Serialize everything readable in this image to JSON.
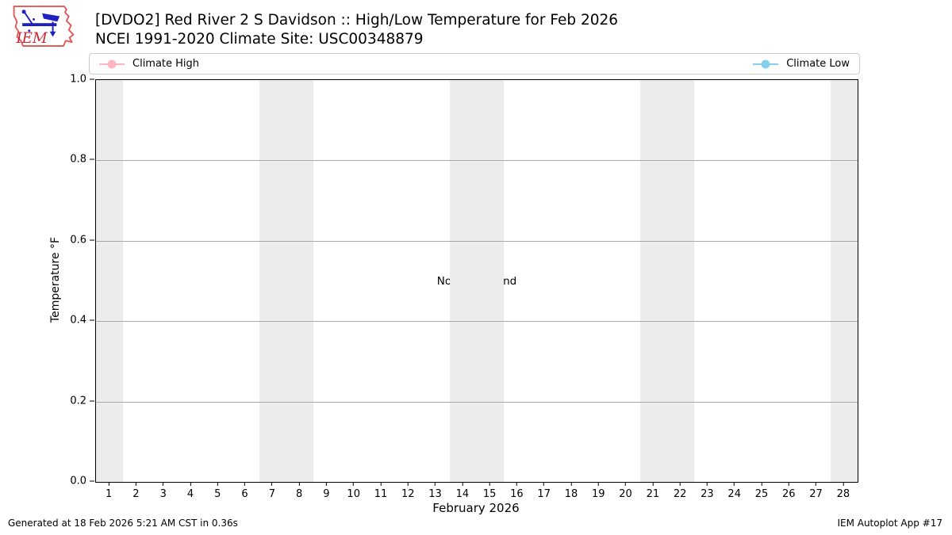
{
  "header": {
    "title": "[DVDO2] Red River 2 S Davidson :: High/Low Temperature for Feb 2026",
    "subtitle": "NCEI 1991-2020 Climate Site: USC00348879",
    "logo_text": "IEM"
  },
  "legend": {
    "items": [
      {
        "label": "Climate High",
        "color": "#ffb6c1"
      },
      {
        "label": "Climate Low",
        "color": "#87ceeb"
      }
    ]
  },
  "chart_data": {
    "type": "line",
    "title": "[DVDO2] Red River 2 S Davidson :: High/Low Temperature for Feb 2026",
    "subtitle": "NCEI 1991-2020 Climate Site: USC00348879",
    "xlabel": "February 2026",
    "ylabel": "Temperature °F",
    "xlim": [
      0.5,
      28.5
    ],
    "ylim": [
      0.0,
      1.0
    ],
    "x_ticks": [
      1,
      2,
      3,
      4,
      5,
      6,
      7,
      8,
      9,
      10,
      11,
      12,
      13,
      14,
      15,
      16,
      17,
      18,
      19,
      20,
      21,
      22,
      23,
      24,
      25,
      26,
      27,
      28
    ],
    "y_ticks": [
      "0.0",
      "0.2",
      "0.4",
      "0.6",
      "0.8",
      "1.0"
    ],
    "grid": "horizontal gridlines only",
    "legend_position": "top bar, high at left / low at right",
    "series": [
      {
        "name": "Climate High",
        "color": "#ffb6c1",
        "x": [],
        "values": []
      },
      {
        "name": "Climate Low",
        "color": "#87ceeb",
        "x": [],
        "values": []
      }
    ],
    "no_data_message": "No Data Found",
    "weekend_shading_bands_x": [
      [
        0.5,
        1.5
      ],
      [
        6.5,
        8.5
      ],
      [
        13.5,
        15.5
      ],
      [
        20.5,
        22.5
      ],
      [
        27.5,
        28.5
      ]
    ],
    "band_color": "#ececec"
  },
  "footer": {
    "generated": "Generated at 18 Feb 2026 5:21 AM CST in 0.36s",
    "app": "IEM Autoplot App #17"
  }
}
